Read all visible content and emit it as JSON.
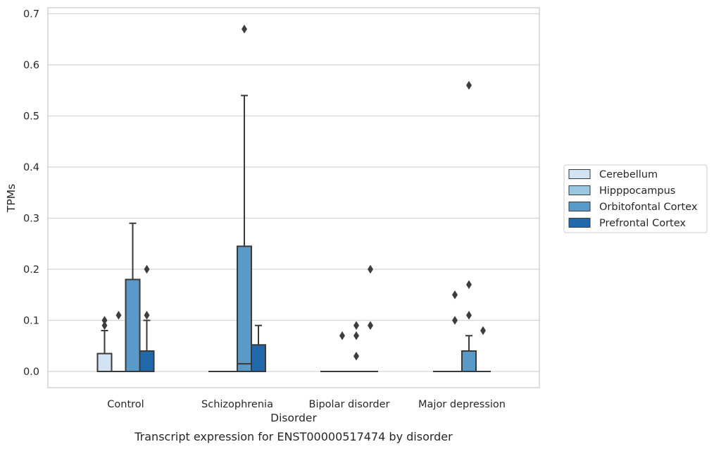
{
  "caption": "Transcript expression for ENST00000517474 by disorder",
  "chart_data": {
    "type": "box",
    "title": "",
    "xlabel": "Disorder",
    "ylabel": "TPMs",
    "ylim": [
      -0.032,
      0.705
    ],
    "yticks": [
      0.0,
      0.1,
      0.2,
      0.3,
      0.4,
      0.5,
      0.6,
      0.7
    ],
    "ytick_labels": [
      "0.0",
      "0.1",
      "0.2",
      "0.3",
      "0.4",
      "0.5",
      "0.6",
      "0.7"
    ],
    "grid": "horizontal",
    "legend_position": "right",
    "categories": [
      "Control",
      "Schizophrenia",
      "Bipolar disorder",
      "Major depression"
    ],
    "series": [
      {
        "name": "Cerebellum",
        "color": "#d2e3f3",
        "boxes": [
          {
            "q1": 0.0,
            "median": 0.0,
            "q3": 0.035,
            "whisker_low": 0.0,
            "whisker_high": 0.08,
            "outliers": [
              0.09,
              0.1
            ]
          },
          {
            "q1": 0.0,
            "median": 0.0,
            "q3": 0.0,
            "whisker_low": 0.0,
            "whisker_high": 0.0,
            "outliers": []
          },
          {
            "q1": 0.0,
            "median": 0.0,
            "q3": 0.0,
            "whisker_low": 0.0,
            "whisker_high": 0.0,
            "outliers": []
          },
          {
            "q1": 0.0,
            "median": 0.0,
            "q3": 0.0,
            "whisker_low": 0.0,
            "whisker_high": 0.0,
            "outliers": []
          }
        ]
      },
      {
        "name": "Hipppocampus",
        "color": "#9ac8e0",
        "boxes": [
          {
            "q1": 0.0,
            "median": 0.0,
            "q3": 0.0,
            "whisker_low": 0.0,
            "whisker_high": 0.0,
            "outliers": [
              0.11
            ]
          },
          {
            "q1": 0.0,
            "median": 0.0,
            "q3": 0.0,
            "whisker_low": 0.0,
            "whisker_high": 0.0,
            "outliers": []
          },
          {
            "q1": 0.0,
            "median": 0.0,
            "q3": 0.0,
            "whisker_low": 0.0,
            "whisker_high": 0.0,
            "outliers": [
              0.07
            ]
          },
          {
            "q1": 0.0,
            "median": 0.0,
            "q3": 0.0,
            "whisker_low": 0.0,
            "whisker_high": 0.0,
            "outliers": [
              0.1,
              0.15
            ]
          }
        ]
      },
      {
        "name": "Orbitofontal Cortex",
        "color": "#5a9ac8",
        "boxes": [
          {
            "q1": 0.0,
            "median": 0.0,
            "q3": 0.18,
            "whisker_low": 0.0,
            "whisker_high": 0.29,
            "outliers": []
          },
          {
            "q1": 0.0,
            "median": 0.015,
            "q3": 0.245,
            "whisker_low": 0.0,
            "whisker_high": 0.54,
            "outliers": [
              0.67
            ]
          },
          {
            "q1": 0.0,
            "median": 0.0,
            "q3": 0.0,
            "whisker_low": 0.0,
            "whisker_high": 0.0,
            "outliers": [
              0.03,
              0.07,
              0.09
            ]
          },
          {
            "q1": 0.0,
            "median": 0.0,
            "q3": 0.04,
            "whisker_low": 0.0,
            "whisker_high": 0.07,
            "outliers": [
              0.11,
              0.17,
              0.56
            ]
          }
        ]
      },
      {
        "name": "Prefrontal Cortex",
        "color": "#2269ac",
        "boxes": [
          {
            "q1": 0.0,
            "median": 0.0,
            "q3": 0.04,
            "whisker_low": 0.0,
            "whisker_high": 0.1,
            "outliers": [
              0.11,
              0.2
            ]
          },
          {
            "q1": 0.0,
            "median": 0.0,
            "q3": 0.052,
            "whisker_low": 0.0,
            "whisker_high": 0.09,
            "outliers": []
          },
          {
            "q1": 0.0,
            "median": 0.0,
            "q3": 0.0,
            "whisker_low": 0.0,
            "whisker_high": 0.0,
            "outliers": [
              0.09,
              0.2
            ]
          },
          {
            "q1": 0.0,
            "median": 0.0,
            "q3": 0.0,
            "whisker_low": 0.0,
            "whisker_high": 0.0,
            "outliers": [
              0.08
            ]
          }
        ]
      }
    ]
  }
}
